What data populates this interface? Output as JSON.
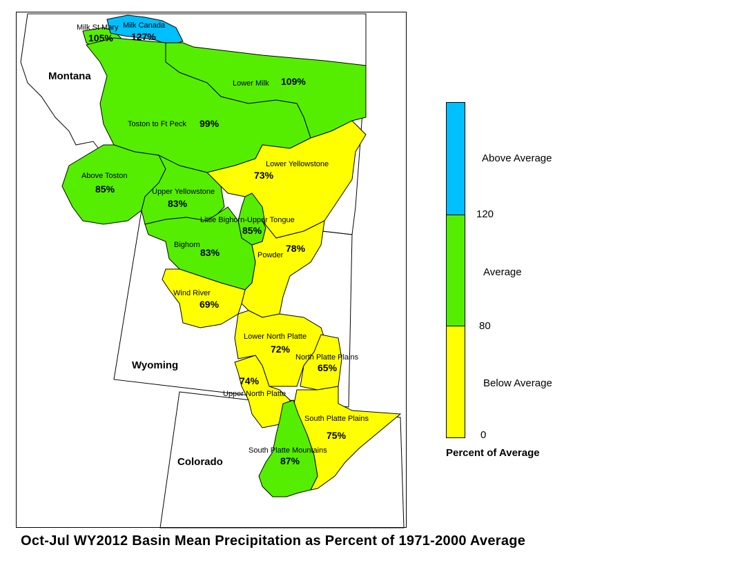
{
  "caption": "Oct-Jul WY2012 Basin Mean Precipitation as Percent of 1971-2000 Average",
  "colors": {
    "above": "#00bfff",
    "average": "#55ee00",
    "below": "#ffff00",
    "border": "#000000"
  },
  "states": [
    {
      "name": "Montana"
    },
    {
      "name": "Wyoming"
    },
    {
      "name": "Colorado"
    }
  ],
  "basins": [
    {
      "name": "Milk St Mary",
      "percent": 105,
      "label": "105%",
      "class": "average"
    },
    {
      "name": "Milk Canada",
      "percent": 127,
      "label": "127%",
      "class": "above"
    },
    {
      "name": "Lower Milk",
      "percent": 109,
      "label": "109%",
      "class": "average"
    },
    {
      "name": "Toston to Ft Peck",
      "percent": 99,
      "label": "99%",
      "class": "average"
    },
    {
      "name": "Above Toston",
      "percent": 85,
      "label": "85%",
      "class": "average"
    },
    {
      "name": "Upper Yellowstone",
      "percent": 83,
      "label": "83%",
      "class": "average"
    },
    {
      "name": "Lower Yellowstone",
      "percent": 73,
      "label": "73%",
      "class": "below"
    },
    {
      "name": "Little Bighorn-Upper Tongue",
      "percent": 85,
      "label": "85%",
      "class": "average"
    },
    {
      "name": "Bighorn",
      "percent": 83,
      "label": "83%",
      "class": "average"
    },
    {
      "name": "Powder",
      "percent": 78,
      "label": "78%",
      "class": "below"
    },
    {
      "name": "Wind River",
      "percent": 69,
      "label": "69%",
      "class": "below"
    },
    {
      "name": "Lower North Platte",
      "percent": 72,
      "label": "72%",
      "class": "below"
    },
    {
      "name": "North Platte Plains",
      "percent": 65,
      "label": "65%",
      "class": "below"
    },
    {
      "name": "Upper North Platte",
      "percent": 74,
      "label": "74%",
      "class": "below"
    },
    {
      "name": "South Platte Plains",
      "percent": 75,
      "label": "75%",
      "class": "below"
    },
    {
      "name": "South Platte Mountains",
      "percent": 87,
      "label": "87%",
      "class": "average"
    }
  ],
  "legend": {
    "title": "Percent of Average",
    "categories": [
      {
        "label": "Above Average",
        "key": "above"
      },
      {
        "label": "Average",
        "key": "average"
      },
      {
        "label": "Below Average",
        "key": "below"
      }
    ],
    "breaks": [
      "120",
      "80",
      "0"
    ]
  }
}
